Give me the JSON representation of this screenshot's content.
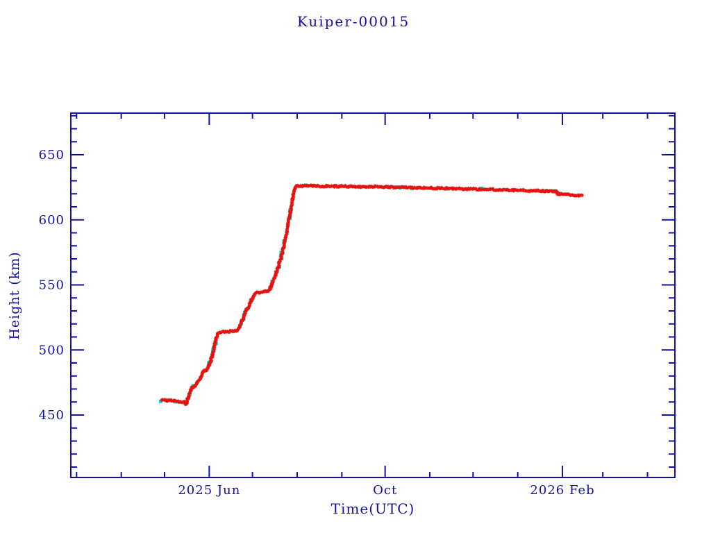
{
  "title": "Kuiper-00015",
  "colors": {
    "axis": "#1212a0",
    "text": "#1212a0",
    "series_primary": "#e6120e",
    "series_overlay": "#00dfdf",
    "background": "#ffffff"
  },
  "chart_data": {
    "type": "scatter",
    "title": "Kuiper-00015",
    "xlabel": "Time(UTC)",
    "ylabel": "Height (km)",
    "xlim": [
      "2025-02-25",
      "2026-04-20"
    ],
    "ylim": [
      402,
      682
    ],
    "grid": false,
    "legend": "none",
    "x_ticks": [
      {
        "date": "2025-03-01",
        "major": false
      },
      {
        "date": "2025-04-01",
        "major": false
      },
      {
        "date": "2025-05-01",
        "major": false
      },
      {
        "date": "2025-06-01",
        "major": true,
        "label": "2025 Jun"
      },
      {
        "date": "2025-07-01",
        "major": false
      },
      {
        "date": "2025-08-01",
        "major": false
      },
      {
        "date": "2025-09-01",
        "major": false
      },
      {
        "date": "2025-10-01",
        "major": true,
        "label": "Oct"
      },
      {
        "date": "2025-11-01",
        "major": false
      },
      {
        "date": "2025-12-01",
        "major": false
      },
      {
        "date": "2026-01-01",
        "major": false
      },
      {
        "date": "2026-02-01",
        "major": true,
        "label": "2026 Feb"
      },
      {
        "date": "2026-03-01",
        "major": false
      },
      {
        "date": "2026-04-01",
        "major": false
      }
    ],
    "y_major_ticks": [
      450,
      500,
      550,
      600,
      650
    ],
    "y_minor_step": 10,
    "series": [
      {
        "name": "height-track",
        "marker": "asterisk",
        "color": "#e6120e",
        "points": [
          [
            "2025-04-29",
            461.5
          ],
          [
            "2025-05-06",
            461.0
          ],
          [
            "2025-05-12",
            460.3
          ],
          [
            "2025-05-15",
            459.8
          ],
          [
            "2025-05-16",
            458.2
          ],
          [
            "2025-05-17",
            462.0
          ],
          [
            "2025-05-18",
            465.8
          ],
          [
            "2025-05-19",
            469.0
          ],
          [
            "2025-05-20",
            471.0
          ],
          [
            "2025-05-22",
            471.8
          ],
          [
            "2025-05-23",
            474.0
          ],
          [
            "2025-05-24",
            476.0
          ],
          [
            "2025-05-25",
            476.8
          ],
          [
            "2025-05-26",
            479.0
          ],
          [
            "2025-05-27",
            481.5
          ],
          [
            "2025-05-28",
            483.8
          ],
          [
            "2025-05-30",
            484.8
          ],
          [
            "2025-05-31",
            486.5
          ],
          [
            "2025-06-01",
            489.0
          ],
          [
            "2025-06-02",
            491.5
          ],
          [
            "2025-06-03",
            495.0
          ],
          [
            "2025-06-04",
            500.0
          ],
          [
            "2025-06-05",
            505.0
          ],
          [
            "2025-06-06",
            509.5
          ],
          [
            "2025-06-07",
            513.0
          ],
          [
            "2025-06-09",
            513.8
          ],
          [
            "2025-06-20",
            514.6
          ],
          [
            "2025-06-22",
            518.0
          ],
          [
            "2025-06-24",
            523.0
          ],
          [
            "2025-06-25",
            526.0
          ],
          [
            "2025-06-26",
            528.5
          ],
          [
            "2025-06-28",
            533.0
          ],
          [
            "2025-06-30",
            537.5
          ],
          [
            "2025-07-01",
            540.0
          ],
          [
            "2025-07-02",
            542.0
          ],
          [
            "2025-07-03",
            543.8
          ],
          [
            "2025-07-06",
            544.3
          ],
          [
            "2025-07-12",
            545.2
          ],
          [
            "2025-07-13",
            546.5
          ],
          [
            "2025-07-14",
            549.0
          ],
          [
            "2025-07-15",
            552.0
          ],
          [
            "2025-07-16",
            555.0
          ],
          [
            "2025-07-17",
            558.0
          ],
          [
            "2025-07-18",
            561.0
          ],
          [
            "2025-07-19",
            564.5
          ],
          [
            "2025-07-20",
            568.0
          ],
          [
            "2025-07-21",
            572.0
          ],
          [
            "2025-07-22",
            576.5
          ],
          [
            "2025-07-23",
            581.0
          ],
          [
            "2025-07-24",
            586.5
          ],
          [
            "2025-07-25",
            592.5
          ],
          [
            "2025-07-26",
            598.5
          ],
          [
            "2025-07-27",
            604.5
          ],
          [
            "2025-07-28",
            611.0
          ],
          [
            "2025-07-29",
            617.5
          ],
          [
            "2025-07-30",
            622.5
          ],
          [
            "2025-07-31",
            625.5
          ],
          [
            "2025-08-01",
            626.2
          ],
          [
            "2025-08-20",
            626.0
          ],
          [
            "2025-09-15",
            625.5
          ],
          [
            "2025-10-15",
            624.9
          ],
          [
            "2025-11-15",
            624.1
          ],
          [
            "2025-12-15",
            623.2
          ],
          [
            "2026-01-10",
            622.4
          ],
          [
            "2026-01-25",
            621.9
          ],
          [
            "2026-01-28",
            621.7
          ],
          [
            "2026-01-29",
            619.6
          ],
          [
            "2026-02-01",
            619.4
          ],
          [
            "2026-02-08",
            619.1
          ],
          [
            "2026-02-15",
            618.8
          ]
        ]
      },
      {
        "name": "height-track-overlay",
        "marker": "square",
        "color": "#00dfdf",
        "follows": "height-track"
      }
    ]
  }
}
